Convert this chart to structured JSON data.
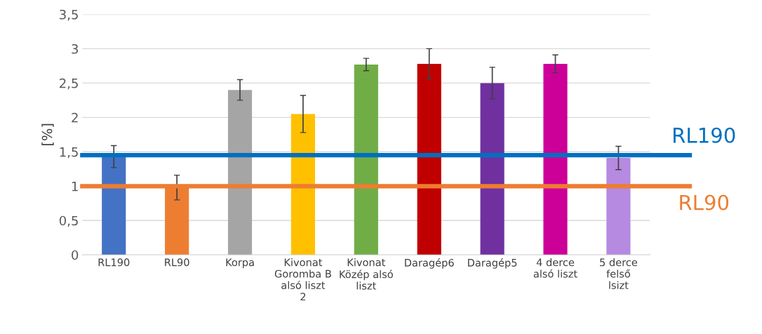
{
  "chart_data": {
    "type": "bar",
    "ylabel": "[%]",
    "categories": [
      "RL190",
      "RL90",
      "Korpa",
      "Kivonat Goromba B alsó liszt 2",
      "Kivonat Közép alsó liszt",
      "Daragép6",
      "Daragép5",
      "4 derce alsó liszt",
      "5 derce felső lsizt"
    ],
    "values": [
      1.43,
      0.98,
      2.4,
      2.05,
      2.77,
      2.78,
      2.5,
      2.78,
      1.41
    ],
    "errors": [
      0.16,
      0.18,
      0.15,
      0.27,
      0.09,
      0.22,
      0.23,
      0.13,
      0.17
    ],
    "colors": [
      "#4472c4",
      "#ed7d31",
      "#a5a5a5",
      "#ffc000",
      "#70ad47",
      "#c00000",
      "#7030a0",
      "#cc0099",
      "#b58ae0"
    ],
    "ylim": [
      0,
      3.5
    ],
    "yticks": [
      0,
      {
        "value": 0.5,
        "label": "0,5"
      },
      1,
      {
        "value": 1.5,
        "label": "1,5"
      },
      2,
      {
        "value": 2.5,
        "label": "2,5"
      },
      3,
      {
        "value": 3.5,
        "label": "3,5"
      }
    ],
    "grid": "y",
    "legend": false,
    "ref_lines": [
      {
        "axis": "y",
        "value": 1.45,
        "label": "RL190",
        "color": "#0070c0"
      },
      {
        "axis": "y",
        "value": 1.0,
        "label": "RL90",
        "color": "#ed7d31"
      }
    ]
  }
}
